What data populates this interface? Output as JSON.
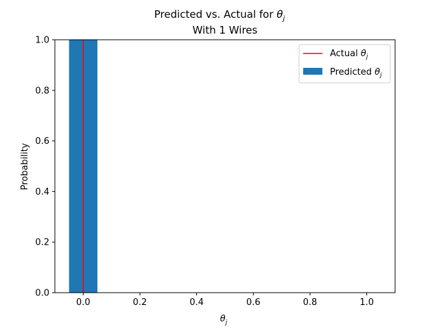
{
  "chart_data": {
    "type": "bar",
    "title_lines": [
      {
        "text": "Predicted vs. Actual for ",
        "math_base": "θ",
        "math_sub": "j"
      },
      {
        "text": "With 1 Wires",
        "math_base": "",
        "math_sub": ""
      }
    ],
    "xlabel": {
      "base": "θ",
      "sub": "j"
    },
    "ylabel": "Probability",
    "xlim": [
      -0.1,
      1.1
    ],
    "ylim": [
      0.0,
      1.0
    ],
    "xticks": [
      0.0,
      0.2,
      0.4,
      0.6,
      0.8,
      1.0
    ],
    "xtick_labels": [
      "0.0",
      "0.2",
      "0.4",
      "0.6",
      "0.8",
      "1.0"
    ],
    "yticks": [
      0.0,
      0.2,
      0.4,
      0.6,
      0.8,
      1.0
    ],
    "ytick_labels": [
      "0.0",
      "0.2",
      "0.4",
      "0.6",
      "0.8",
      "1.0"
    ],
    "grid": false,
    "legend_position": "upper right",
    "series": [
      {
        "name": "Predicted",
        "name_math": {
          "base": "θ",
          "sub": "j"
        },
        "kind": "bar",
        "color": "#1f77b4",
        "bars": [
          {
            "x": 0.0,
            "width": 0.1,
            "value": 1.0
          }
        ]
      },
      {
        "name": "Actual",
        "name_math": {
          "base": "θ",
          "sub": "j"
        },
        "kind": "vline",
        "color": "#ff0000",
        "x": 0.0
      }
    ],
    "legend_order": [
      1,
      0
    ]
  }
}
